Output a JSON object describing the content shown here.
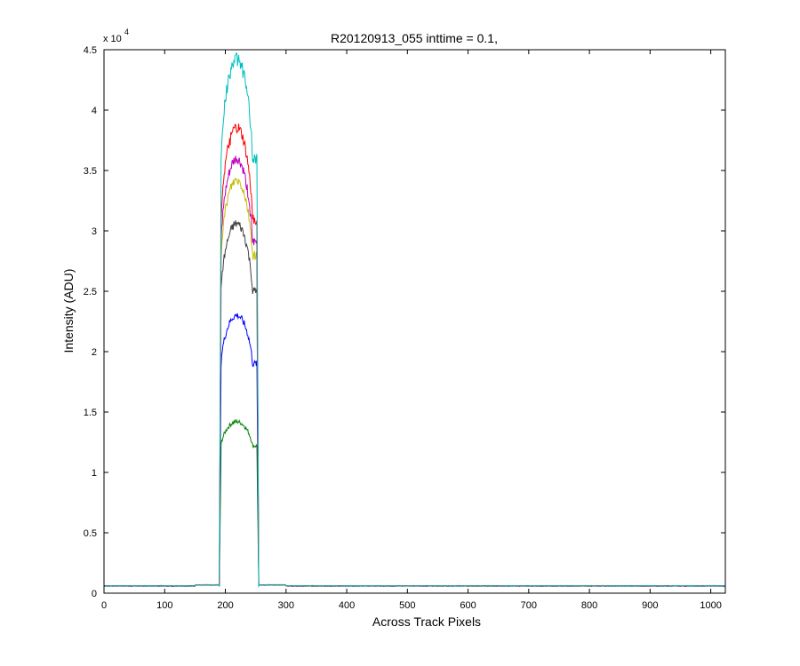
{
  "chart_data": {
    "type": "line",
    "title": "R20120913_055 inttime = 0.1,",
    "xlabel": "Across Track Pixels",
    "ylabel": "Intensity (ADU)",
    "xlim": [
      0,
      1024
    ],
    "ylim": [
      0,
      45000
    ],
    "y_multiplier_label": "x 10",
    "y_multiplier_exponent": "4",
    "x_ticks": [
      0,
      100,
      200,
      300,
      400,
      500,
      600,
      700,
      800,
      900,
      1000
    ],
    "x_tick_labels": [
      "0",
      "100",
      "200",
      "300",
      "400",
      "500",
      "600",
      "700",
      "800",
      "900",
      "1000"
    ],
    "y_ticks": [
      0,
      5000,
      10000,
      15000,
      20000,
      25000,
      30000,
      35000,
      40000,
      45000
    ],
    "y_tick_labels": [
      "0",
      "0.5",
      "1",
      "1.5",
      "2",
      "2.5",
      "3",
      "3.5",
      "4",
      "4.5"
    ],
    "grid": false,
    "legend": "none",
    "baseline": 600,
    "plateau_start": 193,
    "plateau_end": 252,
    "series": [
      {
        "color": "#008000",
        "edge": 12200,
        "peak": 14200
      },
      {
        "color": "#0000ff",
        "edge": 19000,
        "peak": 23000
      },
      {
        "color": "#404040",
        "edge": 25000,
        "peak": 30600
      },
      {
        "color": "#bfbf00",
        "edge": 28000,
        "peak": 34200
      },
      {
        "color": "#bf00bf",
        "edge": 29000,
        "peak": 35900
      },
      {
        "color": "#ff0000",
        "edge": 31000,
        "peak": 38500
      },
      {
        "color": "#00bfbf",
        "edge": 36000,
        "peak": 44200
      }
    ]
  }
}
